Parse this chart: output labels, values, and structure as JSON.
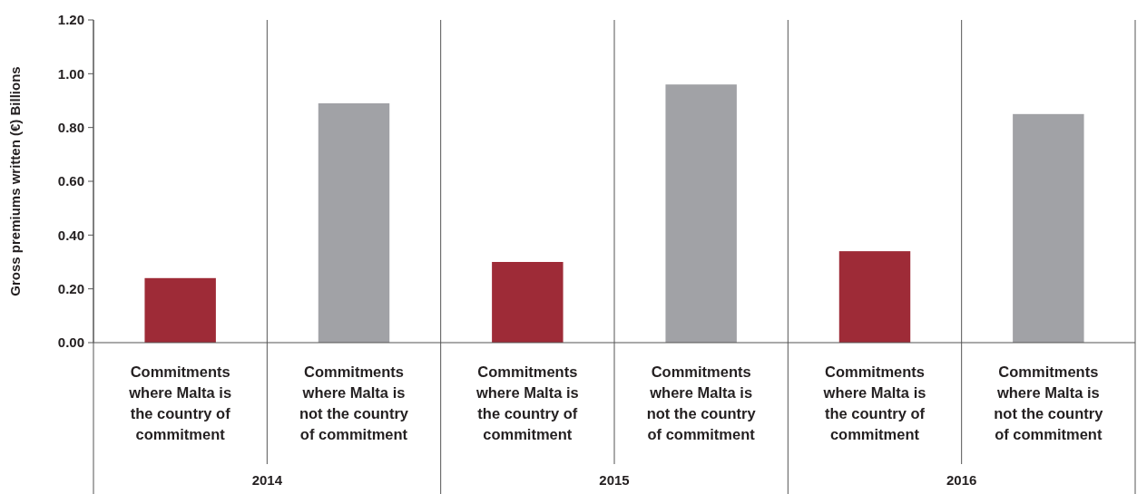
{
  "chart_data": {
    "type": "bar",
    "ylabel": "Gross premiums written (€) Billions",
    "categories": [
      "Commitments where Malta is the country of commitment",
      "Commitments where Malta is not the country of commitment",
      "Commitments where Malta is the country of commitment",
      "Commitments where Malta is not the country of commitment",
      "Commitments where Malta is the country of commitment",
      "Commitments where Malta is not the country of commitment"
    ],
    "values": [
      0.24,
      0.89,
      0.3,
      0.96,
      0.34,
      0.85
    ],
    "colors": [
      "#9e2b37",
      "#a1a2a6",
      "#9e2b37",
      "#a1a2a6",
      "#9e2b37",
      "#a1a2a6"
    ],
    "ylim": [
      0,
      1.2
    ],
    "yticks": [
      {
        "value": 0,
        "label": "0.00"
      },
      {
        "value": 0.2,
        "label": "0.20"
      },
      {
        "value": 0.4,
        "label": "0.40"
      },
      {
        "value": 0.6,
        "label": "0.60"
      },
      {
        "value": 0.8,
        "label": "0.80"
      },
      {
        "value": 1,
        "label": "1.00"
      },
      {
        "value": 1.2,
        "label": "1.20"
      }
    ],
    "annotations": [
      "2014",
      "2015",
      "2016"
    ]
  }
}
